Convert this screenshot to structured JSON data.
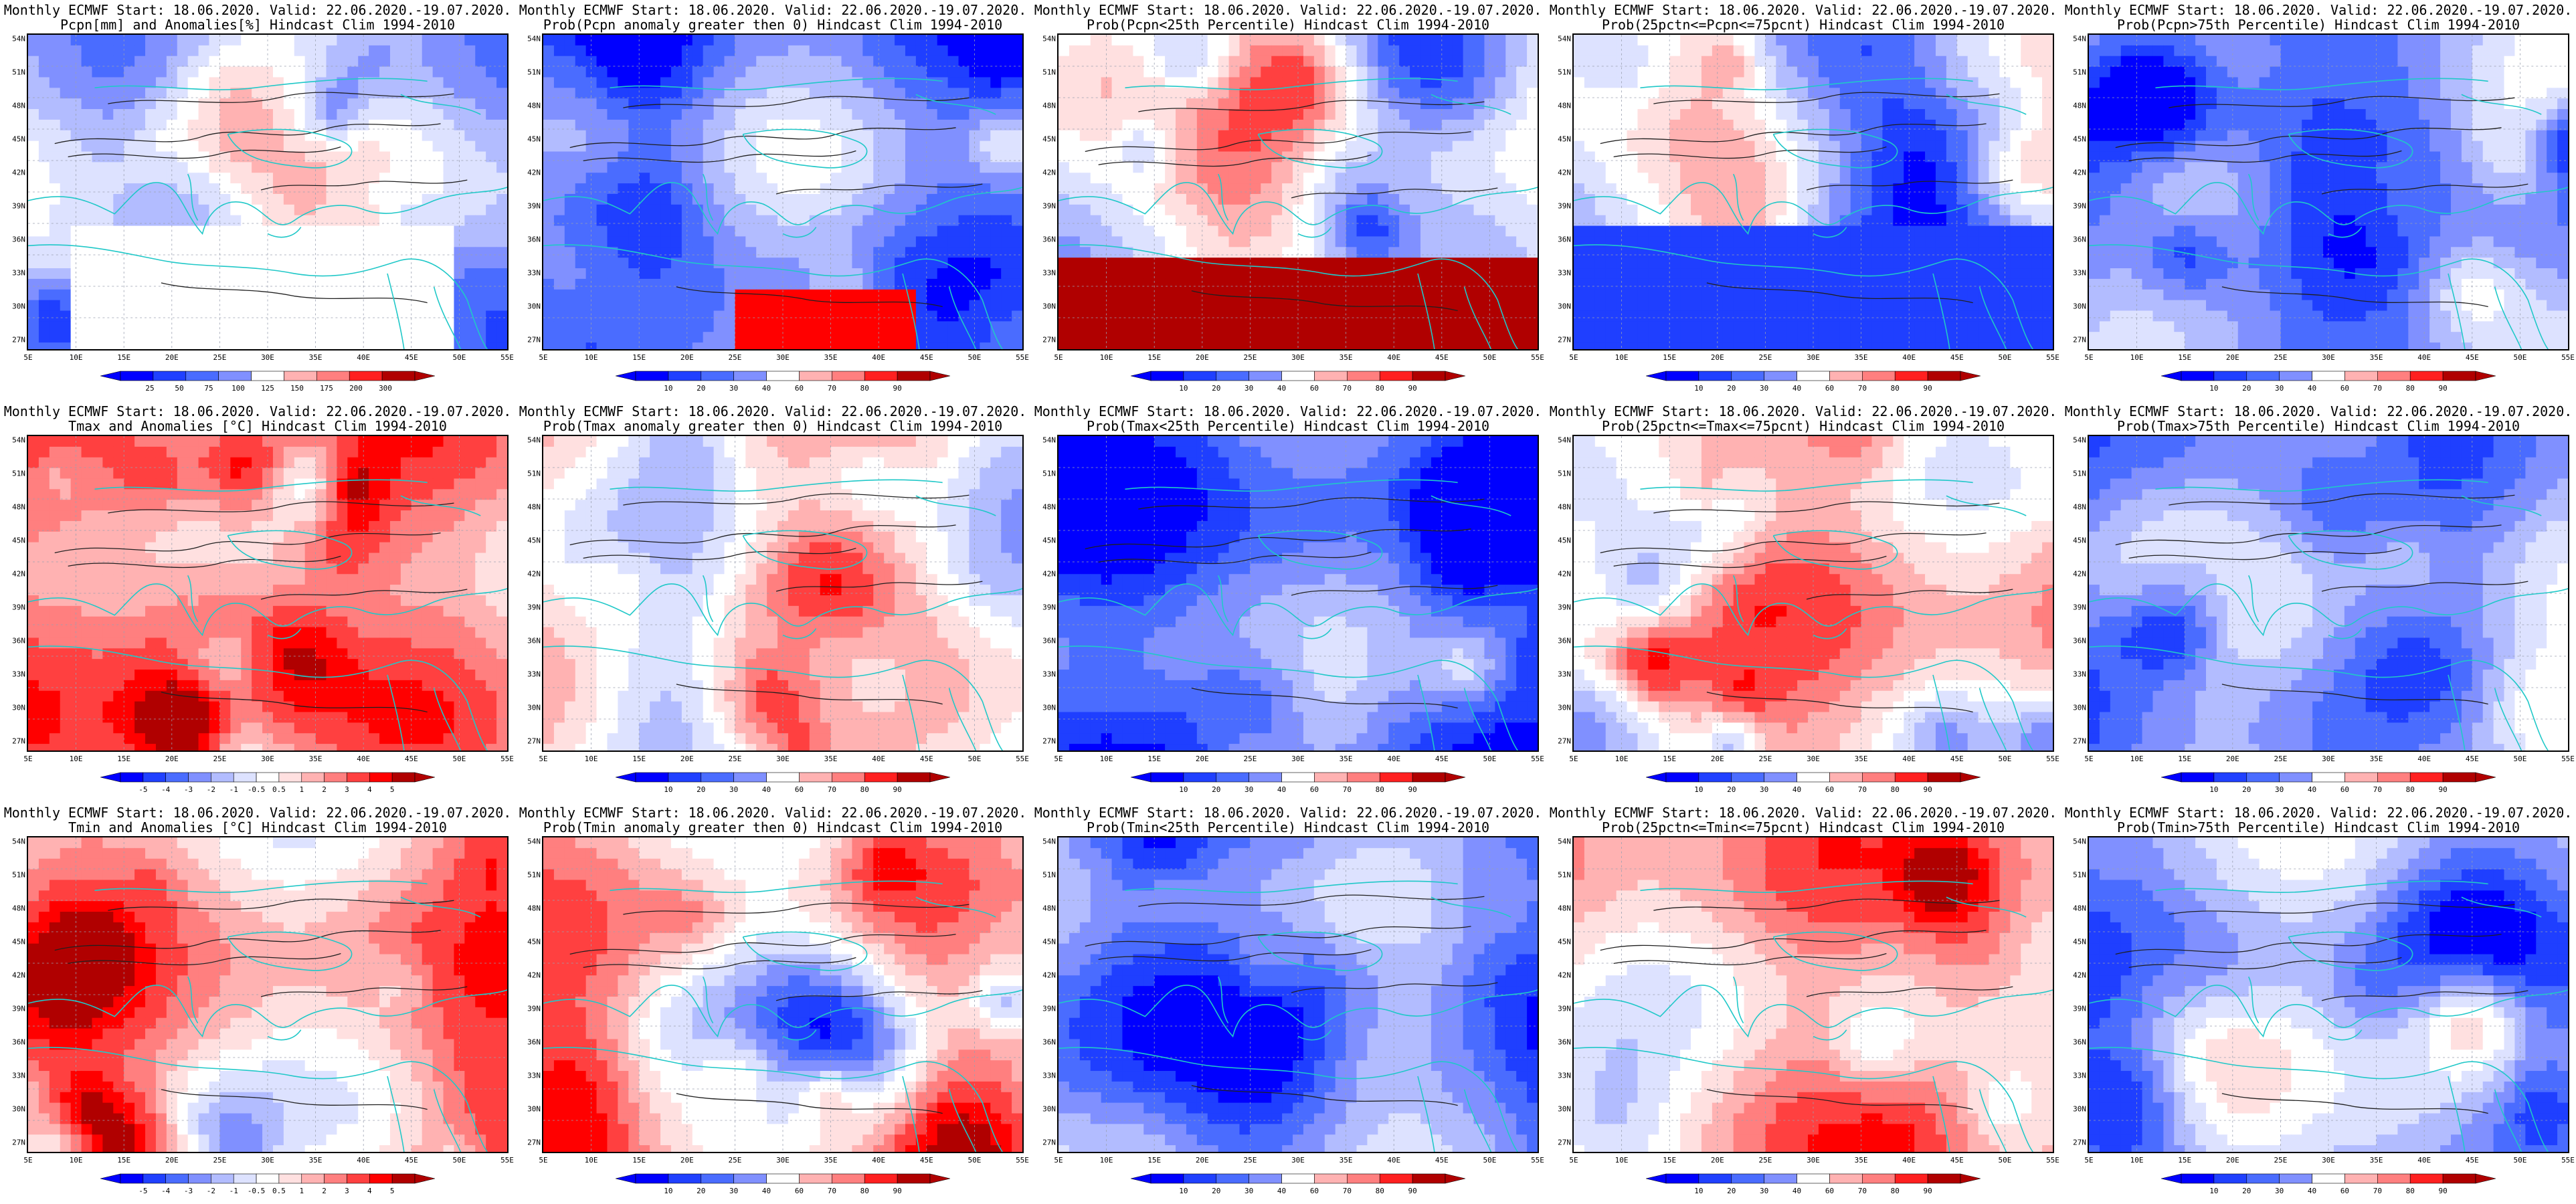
{
  "colors": {
    "blues": [
      "#0000ff",
      "#1f3fff",
      "#4a6cff",
      "#8090ff",
      "#b2bcff",
      "#dde2ff"
    ],
    "reds": [
      "#ffe0e0",
      "#ffb2b2",
      "#ff7f7f",
      "#ff4040",
      "#ff0000",
      "#b00000"
    ],
    "coast": "#20c8c8",
    "contour": "#202020"
  },
  "axes": {
    "lat_ticks": [
      "54N",
      "51N",
      "48N",
      "45N",
      "42N",
      "39N",
      "36N",
      "33N",
      "30N",
      "27N"
    ],
    "lon_ticks": [
      "5E",
      "10E",
      "15E",
      "20E",
      "25E",
      "30E",
      "35E",
      "40E",
      "45E",
      "50E",
      "55E"
    ]
  },
  "colorbars": {
    "precip": [
      "25",
      "50",
      "75",
      "100",
      "125",
      "150",
      "175",
      "200",
      "300"
    ],
    "prob": [
      "10",
      "20",
      "30",
      "40",
      "60",
      "70",
      "80",
      "90"
    ],
    "temp": [
      "-5",
      "-4",
      "-3",
      "-2",
      "-1",
      "-0.5",
      "0.5",
      "1",
      "2",
      "3",
      "4",
      "5"
    ]
  },
  "panels": [
    {
      "title1": "Monthly ECMWF Start: 18.06.2020. Valid: 22.06.2020.-19.07.2020.",
      "title2": "Pcpn[mm] and Anomalies[%] Hindcast Clim 1994-2010",
      "cbar": "precip",
      "bias": 0.6
    },
    {
      "title1": "Monthly ECMWF Start: 18.06.2020. Valid: 22.06.2020.-19.07.2020.",
      "title2": "Prob(Pcpn anomaly greater then 0) Hindcast Clim 1994-2010",
      "cbar": "prob",
      "bias": 0.75
    },
    {
      "title1": "Monthly ECMWF Start: 18.06.2020. Valid: 22.06.2020.-19.07.2020.",
      "title2": "Prob(Pcpn<25th Percentile) Hindcast Clim 1994-2010",
      "cbar": "prob",
      "bias": 0.5
    },
    {
      "title1": "Monthly ECMWF Start: 18.06.2020. Valid: 22.06.2020.-19.07.2020.",
      "title2": "Prob(25pctn<=Pcpn<=75pcnt) Hindcast Clim 1994-2010",
      "cbar": "prob",
      "bias": 0.55
    },
    {
      "title1": "Monthly ECMWF Start: 18.06.2020. Valid: 22.06.2020.-19.07.2020.",
      "title2": "Prob(Pcpn>75th Percentile) Hindcast Clim 1994-2010",
      "cbar": "prob",
      "bias": 0.8
    },
    {
      "title1": "Monthly ECMWF Start: 18.06.2020. Valid: 22.06.2020.-19.07.2020.",
      "title2": "Tmax and Anomalies [°C] Hindcast Clim 1994-2010",
      "cbar": "temp",
      "bias": 0.35
    },
    {
      "title1": "Monthly ECMWF Start: 18.06.2020. Valid: 22.06.2020.-19.07.2020.",
      "title2": "Prob(Tmax anomaly greater then 0) Hindcast Clim 1994-2010",
      "cbar": "prob",
      "bias": 0.45
    },
    {
      "title1": "Monthly ECMWF Start: 18.06.2020. Valid: 22.06.2020.-19.07.2020.",
      "title2": "Prob(Tmax<25th Percentile) Hindcast Clim 1994-2010",
      "cbar": "prob",
      "bias": 0.8
    },
    {
      "title1": "Monthly ECMWF Start: 18.06.2020. Valid: 22.06.2020.-19.07.2020.",
      "title2": "Prob(25pctn<=Tmax<=75pcnt) Hindcast Clim 1994-2010",
      "cbar": "prob",
      "bias": 0.35
    },
    {
      "title1": "Monthly ECMWF Start: 18.06.2020. Valid: 22.06.2020.-19.07.2020.",
      "title2": "Prob(Tmax>75th Percentile) Hindcast Clim 1994-2010",
      "cbar": "prob",
      "bias": 0.7
    },
    {
      "title1": "Monthly ECMWF Start: 18.06.2020. Valid: 22.06.2020.-19.07.2020.",
      "title2": "Tmin and Anomalies [°C] Hindcast Clim 1994-2010",
      "cbar": "temp",
      "bias": 0.35
    },
    {
      "title1": "Monthly ECMWF Start: 18.06.2020. Valid: 22.06.2020.-19.07.2020.",
      "title2": "Prob(Tmin anomaly greater then 0) Hindcast Clim 1994-2010",
      "cbar": "prob",
      "bias": 0.4
    },
    {
      "title1": "Monthly ECMWF Start: 18.06.2020. Valid: 22.06.2020.-19.07.2020.",
      "title2": "Prob(Tmin<25th Percentile) Hindcast Clim 1994-2010",
      "cbar": "prob",
      "bias": 0.8
    },
    {
      "title1": "Monthly ECMWF Start: 18.06.2020. Valid: 22.06.2020.-19.07.2020.",
      "title2": "Prob(25pctn<=Tmin<=75pcnt) Hindcast Clim 1994-2010",
      "cbar": "prob",
      "bias": 0.35
    },
    {
      "title1": "Monthly ECMWF Start: 18.06.2020. Valid: 22.06.2020.-19.07.2020.",
      "title2": "Prob(Tmin>75th Percentile) Hindcast Clim 1994-2010",
      "cbar": "prob",
      "bias": 0.7
    }
  ]
}
